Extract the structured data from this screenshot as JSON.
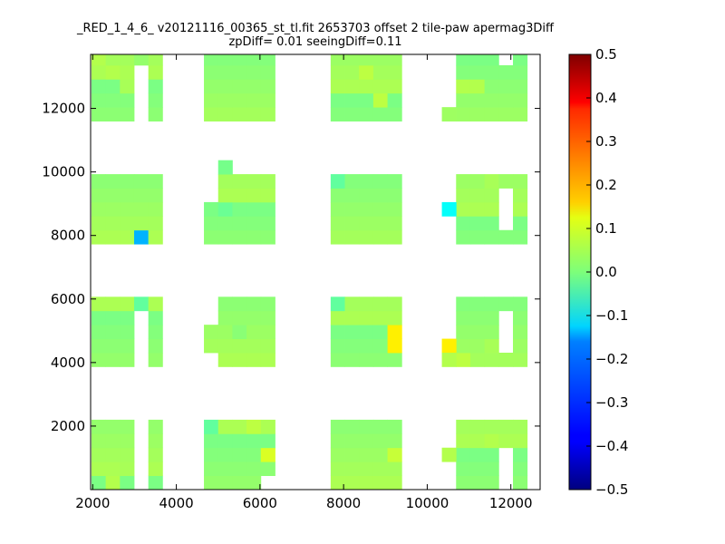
{
  "title_lines": [
    "_RED_1_4_6_ v20121116_00365_st_tl.fit 2653703 offset 2 tile-paw apermag3Diff",
    "zpDiff= 0.01 seeingDiff=0.11"
  ],
  "chart_data": {
    "type": "heatmap",
    "xlim": [
      1950,
      12700
    ],
    "ylim": [
      0,
      13700
    ],
    "xticks": [
      2000,
      4000,
      6000,
      8000,
      10000,
      12000
    ],
    "yticks": [
      2000,
      4000,
      6000,
      8000,
      10000,
      12000
    ],
    "xtick_labels": [
      "2000",
      "4000",
      "6000",
      "8000",
      "10000",
      "12000"
    ],
    "ytick_labels": [
      "2000",
      "4000",
      "6000",
      "8000",
      "10000",
      "12000"
    ],
    "colorbar": {
      "colormap": "jet",
      "min": -0.5,
      "max": 0.5,
      "ticks": [
        0.5,
        0.4,
        0.3,
        0.2,
        0.1,
        0.0,
        -0.1,
        -0.2,
        -0.3,
        -0.4,
        -0.5
      ],
      "tick_labels": [
        "0.5",
        "0.4",
        "0.3",
        "0.2",
        "0.1",
        "0.0",
        "−0.1",
        "−0.2",
        "−0.3",
        "−0.4",
        "−0.5"
      ]
    },
    "cell_size": [
      340,
      440
    ],
    "columns_x_start": [
      1970,
      4660,
      7690,
      10690
    ],
    "detector_columns": 5,
    "rows_y_start": [
      0,
      3870,
      7730,
      11600
    ],
    "detector_rows": 5,
    "default_value": 0.02,
    "cell_overrides": [
      {
        "col": 0,
        "row": 3,
        "i": 0,
        "j": 4,
        "v": 0.05
      },
      {
        "col": 0,
        "row": 3,
        "i": 1,
        "j": 3,
        "v": 0.05
      },
      {
        "col": 0,
        "row": 3,
        "i": 2,
        "j": 2,
        "v": 0.04
      },
      {
        "col": 0,
        "row": 0,
        "i": 1,
        "j": 0,
        "v": 0.05
      },
      {
        "col": 0,
        "row": 0,
        "i": 2,
        "j": 1,
        "v": 0.04
      },
      {
        "col": 1,
        "row": 1,
        "i": 2,
        "j": 2,
        "v": 0.01
      },
      {
        "col": 1,
        "row": 2,
        "i": 1,
        "j": 2,
        "v": -0.02
      },
      {
        "col": 1,
        "row": 0,
        "i": 0,
        "j": 4,
        "v": -0.03
      },
      {
        "col": 1,
        "row": 0,
        "i": 3,
        "j": 4,
        "v": 0.06
      },
      {
        "col": 1,
        "row": 0,
        "i": 4,
        "j": 2,
        "v": 0.09
      },
      {
        "col": 2,
        "row": 3,
        "i": 2,
        "j": 3,
        "v": 0.06
      },
      {
        "col": 2,
        "row": 3,
        "i": 3,
        "j": 1,
        "v": 0.06
      },
      {
        "col": 2,
        "row": 2,
        "i": 0,
        "j": 4,
        "v": -0.03
      },
      {
        "col": 2,
        "row": 1,
        "i": 0,
        "j": 4,
        "v": -0.03
      },
      {
        "col": 2,
        "row": 1,
        "i": 4,
        "j": 1,
        "v": 0.14
      },
      {
        "col": 2,
        "row": 0,
        "i": 4,
        "j": 2,
        "v": 0.07
      },
      {
        "col": 3,
        "row": 3,
        "i": 0,
        "j": 2,
        "v": 0.05
      },
      {
        "col": 3,
        "row": 3,
        "i": 1,
        "j": 2,
        "v": 0.05
      },
      {
        "col": 3,
        "row": 2,
        "i": 2,
        "j": 4,
        "v": 0.04
      },
      {
        "col": 3,
        "row": 1,
        "i": 0,
        "j": 0,
        "v": 0.06
      },
      {
        "col": 3,
        "row": 1,
        "i": 2,
        "j": 1,
        "v": 0.04
      },
      {
        "col": 3,
        "row": 0,
        "i": 2,
        "j": 3,
        "v": 0.05
      }
    ],
    "removed_cells": [
      {
        "col": 0,
        "row": 3,
        "i": 3,
        "j": 3
      },
      {
        "col": 0,
        "row": 3,
        "i": 3,
        "j": 2
      },
      {
        "col": 0,
        "row": 3,
        "i": 3,
        "j": 1
      },
      {
        "col": 0,
        "row": 3,
        "i": 3,
        "j": 0
      },
      {
        "col": 0,
        "row": 1,
        "i": 3,
        "j": 3
      },
      {
        "col": 0,
        "row": 1,
        "i": 3,
        "j": 2
      },
      {
        "col": 0,
        "row": 1,
        "i": 3,
        "j": 1
      },
      {
        "col": 0,
        "row": 1,
        "i": 3,
        "j": 0
      },
      {
        "col": 0,
        "row": 0,
        "i": 3,
        "j": 4
      },
      {
        "col": 0,
        "row": 0,
        "i": 3,
        "j": 3
      },
      {
        "col": 0,
        "row": 0,
        "i": 3,
        "j": 2
      },
      {
        "col": 0,
        "row": 0,
        "i": 3,
        "j": 1
      },
      {
        "col": 0,
        "row": 0,
        "i": 3,
        "j": 0
      },
      {
        "col": 1,
        "row": 2,
        "i": 0,
        "j": 4
      },
      {
        "col": 1,
        "row": 2,
        "i": 0,
        "j": 3
      },
      {
        "col": 1,
        "row": 1,
        "i": 0,
        "j": 4
      },
      {
        "col": 1,
        "row": 1,
        "i": 0,
        "j": 3
      },
      {
        "col": 1,
        "row": 1,
        "i": 0,
        "j": 0
      },
      {
        "col": 1,
        "row": 0,
        "i": 4,
        "j": 0
      },
      {
        "col": 3,
        "row": 3,
        "i": 3,
        "j": 4
      },
      {
        "col": 3,
        "row": 2,
        "i": 3,
        "j": 3
      },
      {
        "col": 3,
        "row": 2,
        "i": 3,
        "j": 2
      },
      {
        "col": 3,
        "row": 2,
        "i": 3,
        "j": 1
      },
      {
        "col": 3,
        "row": 1,
        "i": 3,
        "j": 3
      },
      {
        "col": 3,
        "row": 1,
        "i": 3,
        "j": 2
      },
      {
        "col": 3,
        "row": 1,
        "i": 3,
        "j": 1
      },
      {
        "col": 3,
        "row": 0,
        "i": 3,
        "j": 2
      },
      {
        "col": 3,
        "row": 0,
        "i": 3,
        "j": 1
      },
      {
        "col": 3,
        "row": 0,
        "i": 3,
        "j": 0
      }
    ],
    "extra_cells": [
      {
        "col": 0,
        "row": 3,
        "i": 3,
        "j": 4,
        "v": 0.02
      },
      {
        "col": 0,
        "row": 2,
        "i": 3,
        "j": 0,
        "v": -0.2
      },
      {
        "col": 0,
        "row": 1,
        "i": 3,
        "j": 4,
        "v": -0.03
      },
      {
        "col": 1,
        "row": 2,
        "i": 1,
        "j": 5,
        "v": -0.01
      },
      {
        "col": 2,
        "row": 1,
        "i": 4,
        "j": 2,
        "v": 0.14
      },
      {
        "col": 3,
        "row": 3,
        "i": -1,
        "j": 0,
        "v": 0.03
      },
      {
        "col": 3,
        "row": 2,
        "i": -1,
        "j": 2,
        "v": -0.12
      },
      {
        "col": 3,
        "row": 1,
        "i": -1,
        "j": 1,
        "v": 0.14
      },
      {
        "col": 3,
        "row": 1,
        "i": -1,
        "j": 0,
        "v": 0.05
      },
      {
        "col": 3,
        "row": 0,
        "i": -1,
        "j": 2,
        "v": 0.05
      }
    ]
  }
}
